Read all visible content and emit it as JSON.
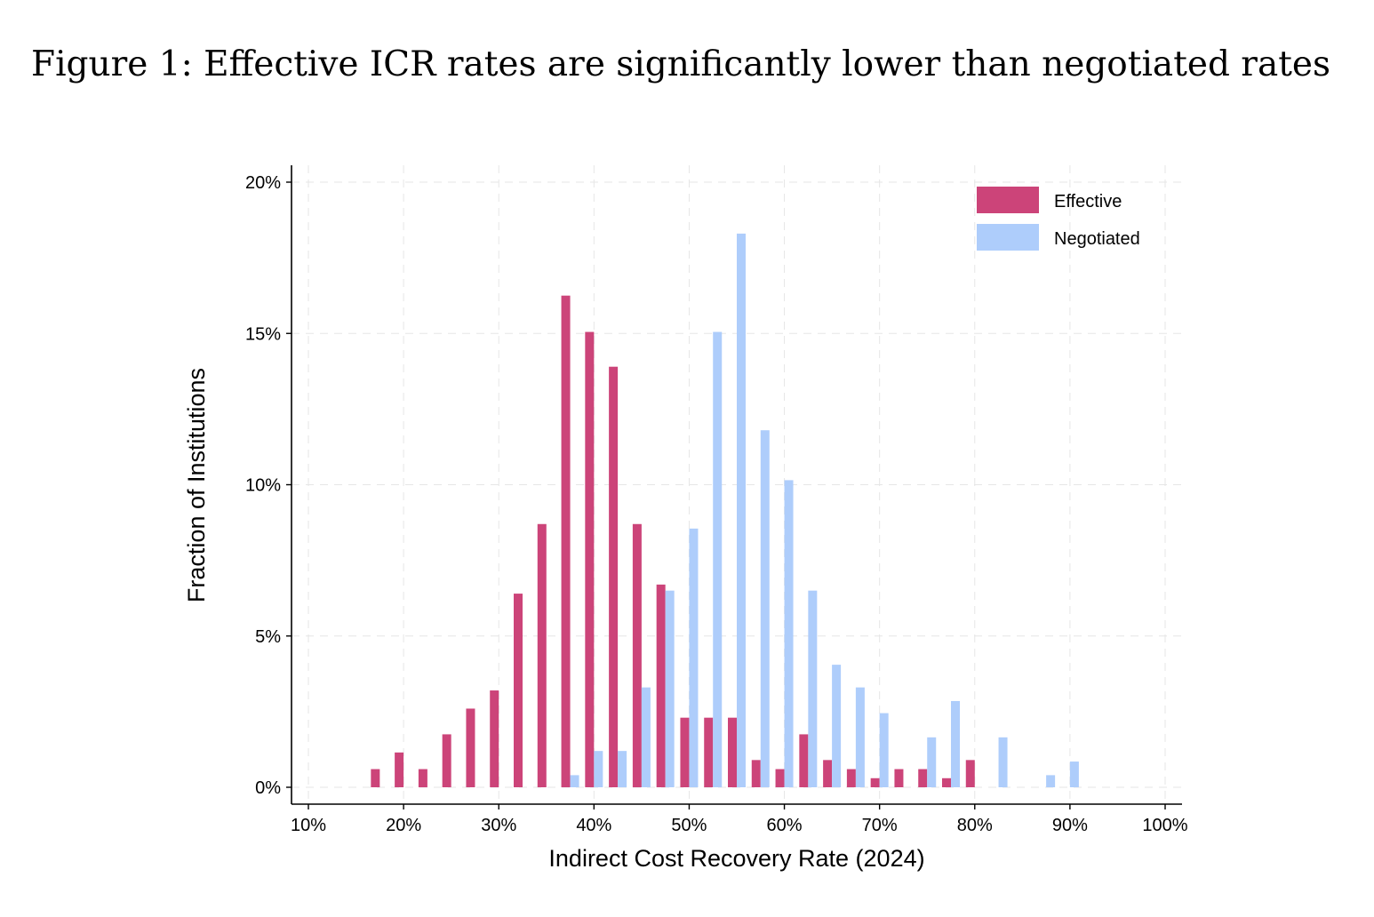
{
  "figure": {
    "title": "Figure 1: Effective ICR rates are significantly lower than negotiated rates"
  },
  "chart_data": {
    "type": "bar",
    "xlabel": "Indirect Cost Recovery Rate (2024)",
    "ylabel": "Fraction of Institutions",
    "xlim": [
      10,
      100
    ],
    "ylim": [
      0,
      20
    ],
    "x_ticks": [
      "10%",
      "20%",
      "30%",
      "40%",
      "50%",
      "60%",
      "70%",
      "80%",
      "90%",
      "100%"
    ],
    "y_ticks": [
      "0%",
      "5%",
      "10%",
      "15%",
      "20%"
    ],
    "grid": true,
    "legend_position": "top-right",
    "bin_width": 2.5,
    "series": [
      {
        "name": "Effective",
        "color": "#CC4479",
        "x": [
          17.5,
          20,
          22.5,
          25,
          27.5,
          30,
          32.5,
          35,
          37.5,
          40,
          42.5,
          45,
          47.5,
          50,
          52.5,
          55,
          57.5,
          60,
          62.5,
          65,
          67.5,
          70,
          72.5,
          75,
          77.5,
          80
        ],
        "values": [
          0.6,
          1.15,
          0.6,
          1.75,
          2.6,
          3.2,
          6.4,
          8.7,
          16.25,
          15.05,
          13.9,
          8.7,
          6.7,
          2.3,
          2.3,
          2.3,
          0.9,
          0.6,
          1.75,
          0.9,
          0.6,
          0.3,
          0.6,
          0.6,
          0.3,
          0.9
        ]
      },
      {
        "name": "Negotiated",
        "color": "#AECDFB",
        "x": [
          37.5,
          40,
          42.5,
          45,
          47.5,
          50,
          52.5,
          55,
          57.5,
          60,
          62.5,
          65,
          67.5,
          70,
          75,
          77.5,
          82.5,
          87.5,
          90
        ],
        "values": [
          0.4,
          1.2,
          1.2,
          3.3,
          6.5,
          8.55,
          15.05,
          18.3,
          11.8,
          10.15,
          6.5,
          4.05,
          3.3,
          2.45,
          1.65,
          2.85,
          1.65,
          0.4,
          0.85
        ]
      }
    ]
  }
}
